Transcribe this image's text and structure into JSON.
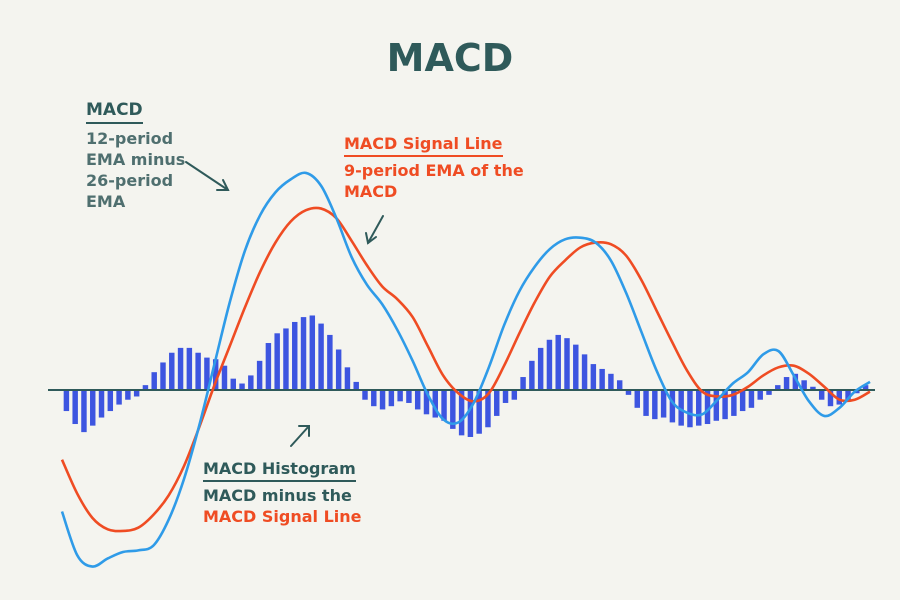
{
  "title": "MACD",
  "annotations": {
    "macd": {
      "heading": "MACD",
      "lines": [
        "12-period",
        "EMA minus",
        "26-period",
        "EMA"
      ]
    },
    "signal": {
      "heading": "MACD Signal Line",
      "lines": [
        "9-period EMA of the",
        "MACD"
      ]
    },
    "histogram": {
      "heading": "MACD Histogram",
      "line1": "MACD minus the",
      "line2": "MACD Signal Line"
    }
  },
  "colors": {
    "background": "#f4f4ef",
    "macd_line": "#2f9be8",
    "signal_line": "#ef4c23",
    "histogram": "#3d55e0",
    "zero_line": "#2f5a5a",
    "title": "#2f5a5a"
  },
  "chart_data": {
    "type": "line",
    "title": "MACD",
    "xlabel": "",
    "ylabel": "",
    "grid": false,
    "zero_line": true,
    "ylim": [
      -12,
      15
    ],
    "series": [
      {
        "name": "MACD",
        "color": "#2f9be8",
        "values": [
          -7.5,
          -10.2,
          -10.9,
          -10.4,
          -10.0,
          -9.9,
          -9.6,
          -8.0,
          -5.5,
          -2.2,
          1.6,
          5.4,
          8.6,
          10.8,
          12.2,
          13.0,
          13.4,
          12.6,
          10.6,
          8.2,
          6.5,
          5.3,
          3.7,
          1.8,
          -0.3,
          -1.8,
          -2.0,
          -0.8,
          1.4,
          4.0,
          6.1,
          7.6,
          8.7,
          9.3,
          9.4,
          9.1,
          8.0,
          6.0,
          3.6,
          1.2,
          -0.7,
          -1.4,
          -1.5,
          -0.6,
          0.4,
          1.1,
          2.2,
          2.4,
          0.9,
          -0.7,
          -1.6,
          -1.1,
          -0.1,
          0.5
        ]
      },
      {
        "name": "MACD Signal Line",
        "color": "#ef4c23",
        "values": [
          -4.3,
          -6.4,
          -7.9,
          -8.6,
          -8.7,
          -8.5,
          -7.7,
          -6.5,
          -4.7,
          -2.3,
          0.3,
          2.7,
          5.1,
          7.3,
          9.1,
          10.4,
          11.1,
          11.2,
          10.6,
          9.2,
          7.7,
          6.4,
          5.6,
          4.5,
          2.7,
          0.9,
          -0.2,
          -0.7,
          -0.2,
          1.5,
          3.5,
          5.4,
          7.0,
          8.0,
          8.8,
          9.1,
          9.0,
          8.3,
          6.8,
          4.9,
          3.0,
          1.2,
          -0.1,
          -0.4,
          -0.3,
          0.2,
          0.9,
          1.4,
          1.5,
          1.0,
          0.2,
          -0.6,
          -0.6,
          -0.1
        ]
      }
    ],
    "histogram": {
      "name": "MACD Histogram",
      "color": "#3d55e0",
      "values": [
        -1.3,
        -2.1,
        -2.6,
        -2.2,
        -1.7,
        -1.3,
        -0.9,
        -0.6,
        -0.4,
        0.3,
        1.1,
        1.7,
        2.3,
        2.6,
        2.6,
        2.3,
        2.0,
        1.9,
        1.5,
        0.7,
        0.4,
        0.9,
        1.8,
        2.9,
        3.5,
        3.8,
        4.2,
        4.5,
        4.6,
        4.1,
        3.4,
        2.5,
        1.4,
        0.5,
        -0.6,
        -1.0,
        -1.2,
        -1.0,
        -0.7,
        -0.8,
        -1.2,
        -1.5,
        -1.7,
        -1.9,
        -2.4,
        -2.8,
        -2.9,
        -2.7,
        -2.3,
        -1.6,
        -0.8,
        -0.6,
        0.8,
        1.8,
        2.6,
        3.1,
        3.4,
        3.2,
        2.8,
        2.2,
        1.6,
        1.3,
        1.0,
        0.6,
        -0.3,
        -1.1,
        -1.6,
        -1.8,
        -1.7,
        -2.0,
        -2.2,
        -2.3,
        -2.2,
        -2.1,
        -1.9,
        -1.8,
        -1.6,
        -1.3,
        -1.1,
        -0.6,
        -0.3,
        0.3,
        0.8,
        1.0,
        0.6,
        0.2,
        -0.6,
        -1.0,
        -0.9,
        -0.6,
        -0.2,
        0.3
      ]
    }
  }
}
